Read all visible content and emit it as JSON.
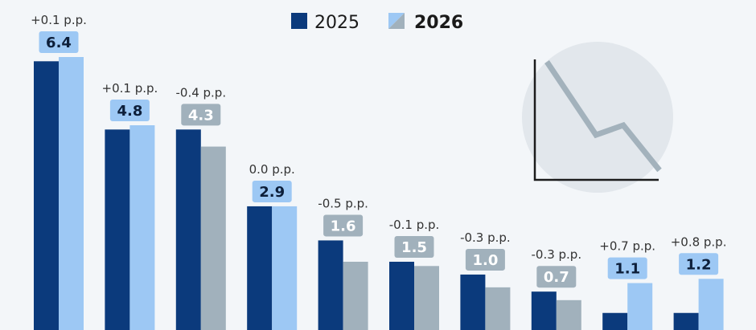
{
  "chart_data": {
    "type": "bar",
    "title": "",
    "xlabel": "",
    "ylabel": "",
    "ylim": [
      0,
      6.4
    ],
    "legend_position": "top",
    "series": [
      {
        "name": "2025",
        "color": "#0b3a7c",
        "values": [
          6.3,
          4.7,
          4.7,
          2.9,
          2.1,
          1.6,
          1.3,
          0.9,
          0.4,
          0.4
        ]
      },
      {
        "name": "2026",
        "color": "#9dc8f4",
        "alt_color": "#a1b1bc",
        "values": [
          6.4,
          4.8,
          4.3,
          2.9,
          1.6,
          1.5,
          1.0,
          0.7,
          1.1,
          1.2
        ]
      }
    ],
    "labels": [
      {
        "delta": "+0.1 p.p.",
        "value": "6.4",
        "trend": "up"
      },
      {
        "delta": "+0.1 p.p.",
        "value": "4.8",
        "trend": "up"
      },
      {
        "delta": "-0.4 p.p.",
        "value": "4.3",
        "trend": "down"
      },
      {
        "delta": "0.0 p.p.",
        "value": "2.9",
        "trend": "up"
      },
      {
        "delta": "-0.5 p.p.",
        "value": "1.6",
        "trend": "down"
      },
      {
        "delta": "-0.1 p.p.",
        "value": "1.5",
        "trend": "down"
      },
      {
        "delta": "-0.3 p.p.",
        "value": "1.0",
        "trend": "down"
      },
      {
        "delta": "-0.3 p.p.",
        "value": "0.7",
        "trend": "down"
      },
      {
        "delta": "+0.7 p.p.",
        "value": "1.1",
        "trend": "up"
      },
      {
        "delta": "+0.8 p.p.",
        "value": "1.2",
        "trend": "up"
      }
    ]
  },
  "decoration": {
    "icon": "declining-line-chart-icon"
  }
}
